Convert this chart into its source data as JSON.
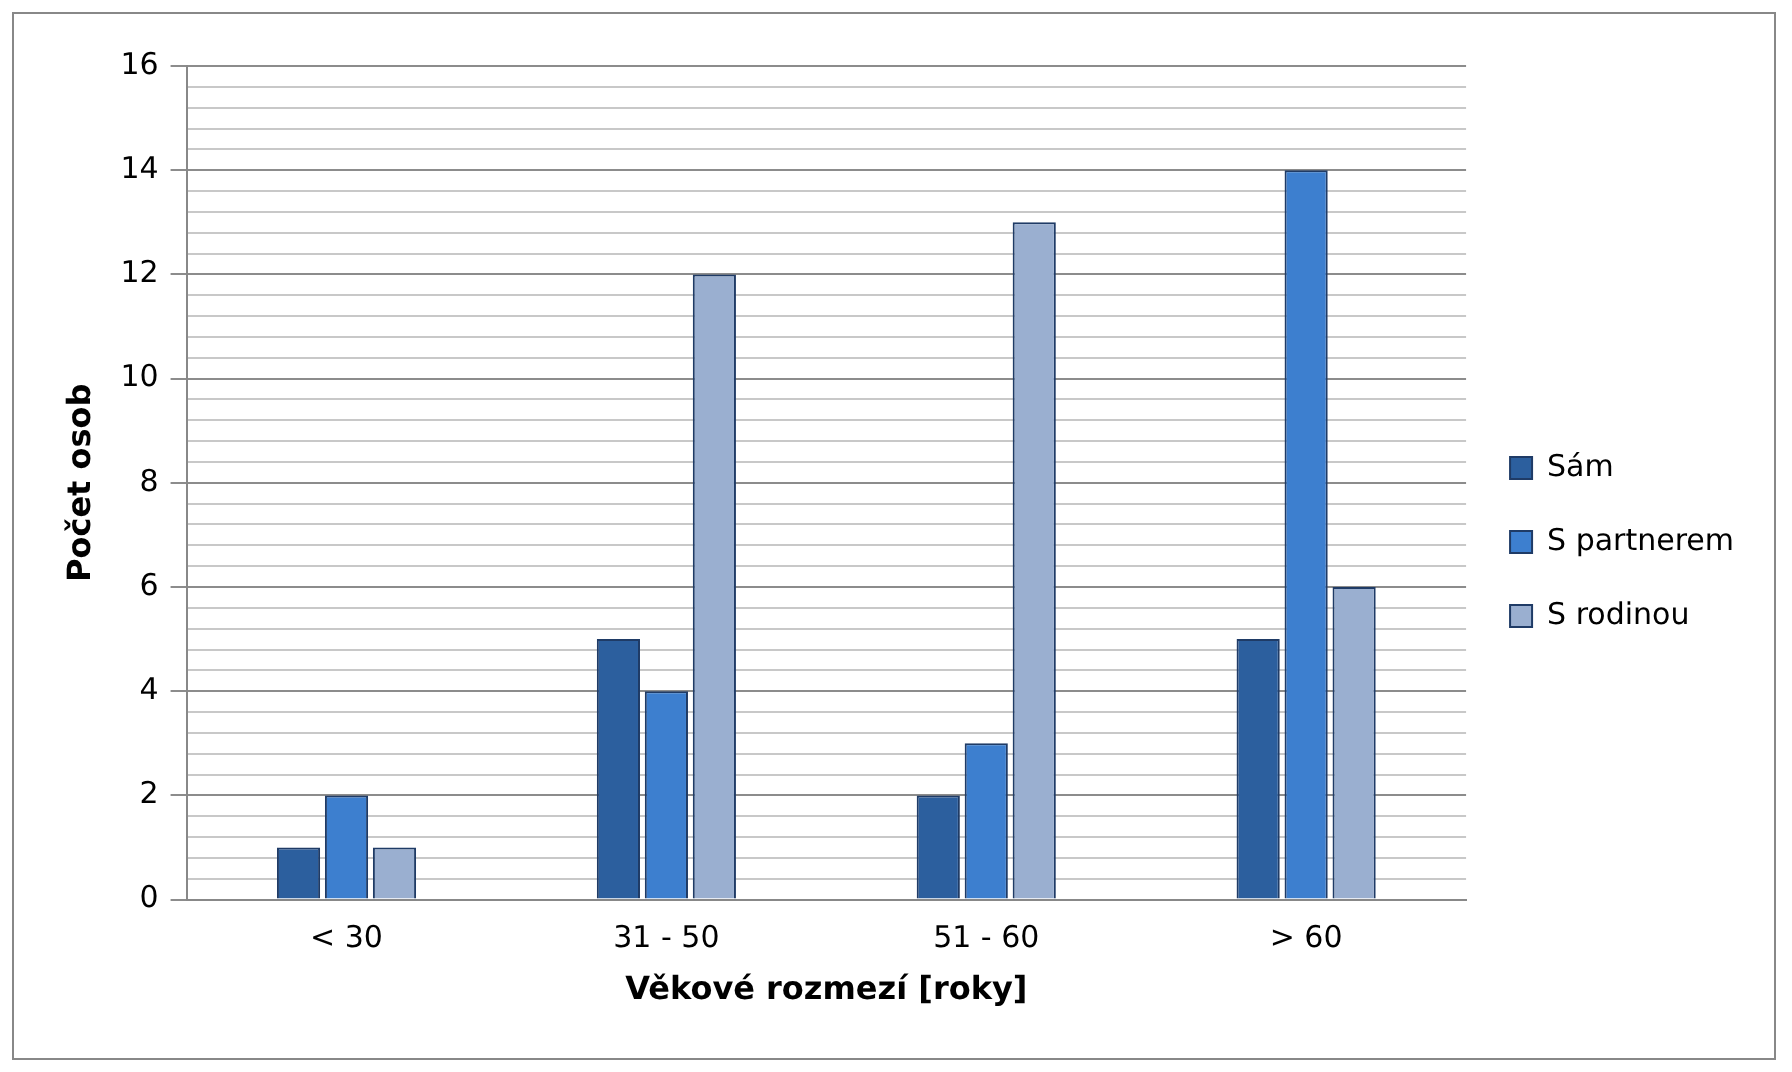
{
  "chart_data": {
    "type": "bar",
    "xlabel": "Věkové rozmezí [roky]",
    "ylabel": "Počet osob",
    "categories": [
      "< 30",
      "31 - 50",
      "51 - 60",
      "> 60"
    ],
    "series": [
      {
        "name": "Sám",
        "color": "#2c5f9e",
        "values": [
          1,
          5,
          2,
          5
        ]
      },
      {
        "name": "S partnerem",
        "color": "#3d7fcf",
        "values": [
          2,
          4,
          3,
          14
        ]
      },
      {
        "name": "S rodinou",
        "color": "#9aafd0",
        "values": [
          1,
          12,
          13,
          6
        ]
      }
    ],
    "ylim": [
      0,
      16
    ],
    "yticks": [
      0,
      {
        "value": 0.4,
        "label": null
      },
      {
        "value": 0.8,
        "label": null
      },
      {
        "value": 1.2,
        "label": null
      },
      {
        "value": 1.6,
        "label": null
      },
      2,
      {
        "value": 2.4,
        "label": null
      },
      {
        "value": 2.8,
        "label": null
      },
      {
        "value": 3.2,
        "label": null
      },
      {
        "value": 3.6,
        "label": null
      },
      4,
      {
        "value": 4.4,
        "label": null
      },
      {
        "value": 4.8,
        "label": null
      },
      {
        "value": 5.2,
        "label": null
      },
      {
        "value": 5.6,
        "label": null
      },
      6,
      {
        "value": 6.4,
        "label": null
      },
      {
        "value": 6.8,
        "label": null
      },
      {
        "value": 7.2,
        "label": null
      },
      {
        "value": 7.6,
        "label": null
      },
      8,
      {
        "value": 8.4,
        "label": null
      },
      {
        "value": 8.8,
        "label": null
      },
      {
        "value": 9.2,
        "label": null
      },
      {
        "value": 9.6,
        "label": null
      },
      10,
      {
        "value": 10.4,
        "label": null
      },
      {
        "value": 10.8,
        "label": null
      },
      {
        "value": 11.2,
        "label": null
      },
      {
        "value": 11.6,
        "label": null
      },
      12,
      {
        "value": 12.4,
        "label": null
      },
      {
        "value": 12.8,
        "label": null
      },
      {
        "value": 13.2,
        "label": null
      },
      {
        "value": 13.6,
        "label": null
      },
      14,
      {
        "value": 14.4,
        "label": null
      },
      {
        "value": 14.8,
        "label": null
      },
      {
        "value": 15.2,
        "label": null
      },
      {
        "value": 15.6,
        "label": null
      },
      16
    ],
    "grid": "y",
    "legend": "right"
  }
}
